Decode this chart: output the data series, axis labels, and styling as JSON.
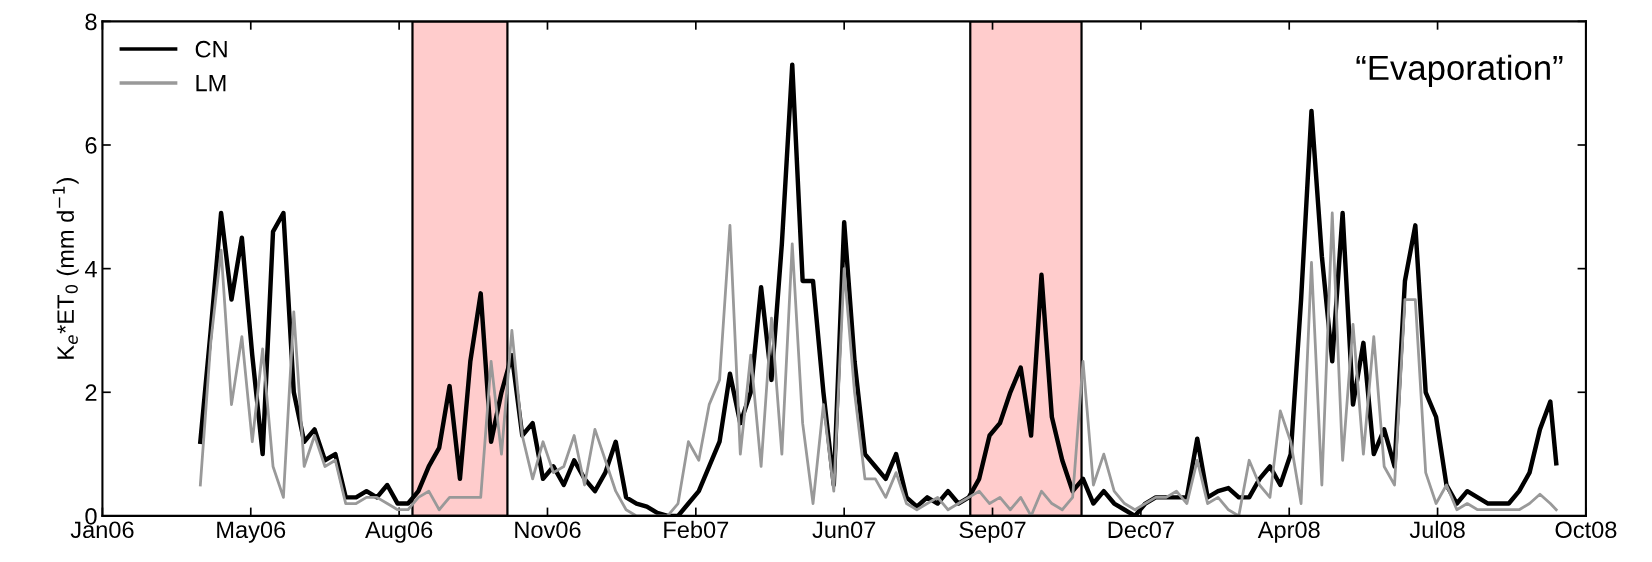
{
  "chart_data": {
    "type": "line",
    "ylabel": "K$_{e}$*ET$_{0}$ (mm d$^{−1}$)",
    "annotations": [
      "“Evaporation”"
    ],
    "x": [
      "2006-03-30",
      "2006-04-06",
      "2006-04-13",
      "2006-04-20",
      "2006-04-27",
      "2006-05-04",
      "2006-05-11",
      "2006-05-18",
      "2006-05-25",
      "2006-06-01",
      "2006-06-08",
      "2006-06-15",
      "2006-06-22",
      "2006-06-29",
      "2006-07-06",
      "2006-07-13",
      "2006-07-20",
      "2006-07-27",
      "2006-08-03",
      "2006-08-10",
      "2006-08-17",
      "2006-08-24",
      "2006-08-31",
      "2006-09-07",
      "2006-09-14",
      "2006-09-21",
      "2006-09-28",
      "2006-10-05",
      "2006-10-12",
      "2006-10-19",
      "2006-10-26",
      "2006-11-02",
      "2006-11-09",
      "2006-11-16",
      "2006-11-23",
      "2006-11-30",
      "2006-12-07",
      "2006-12-14",
      "2006-12-21",
      "2006-12-28",
      "2007-01-04",
      "2007-01-11",
      "2007-01-18",
      "2007-01-25",
      "2007-02-01",
      "2007-02-08",
      "2007-02-15",
      "2007-02-22",
      "2007-03-01",
      "2007-03-08",
      "2007-03-15",
      "2007-03-22",
      "2007-03-29",
      "2007-04-05",
      "2007-04-12",
      "2007-04-19",
      "2007-04-26",
      "2007-05-03",
      "2007-05-10",
      "2007-05-17",
      "2007-05-24",
      "2007-05-31",
      "2007-06-07",
      "2007-06-14",
      "2007-06-21",
      "2007-06-28",
      "2007-07-05",
      "2007-07-12",
      "2007-07-19",
      "2007-07-26",
      "2007-08-02",
      "2007-08-09",
      "2007-08-16",
      "2007-08-23",
      "2007-08-30",
      "2007-09-06",
      "2007-09-13",
      "2007-09-20",
      "2007-09-27",
      "2007-10-04",
      "2007-10-11",
      "2007-10-18",
      "2007-10-25",
      "2007-11-01",
      "2007-11-08",
      "2007-11-15",
      "2007-11-22",
      "2007-11-29",
      "2007-12-06",
      "2007-12-13",
      "2007-12-20",
      "2007-12-27",
      "2008-01-03",
      "2008-01-10",
      "2008-01-17",
      "2008-01-24",
      "2008-01-31",
      "2008-02-07",
      "2008-02-14",
      "2008-02-21",
      "2008-02-28",
      "2008-03-06",
      "2008-03-13",
      "2008-03-20",
      "2008-03-27",
      "2008-04-03",
      "2008-04-10",
      "2008-04-17",
      "2008-04-24",
      "2008-05-01",
      "2008-05-08",
      "2008-05-15",
      "2008-05-22",
      "2008-05-29",
      "2008-06-05",
      "2008-06-12",
      "2008-06-19",
      "2008-06-26",
      "2008-07-03",
      "2008-07-10",
      "2008-07-17",
      "2008-07-24",
      "2008-07-31",
      "2008-08-07",
      "2008-08-14",
      "2008-08-21",
      "2008-08-28",
      "2008-09-04",
      "2008-09-11",
      "2008-09-18",
      "2008-09-25",
      "2008-09-29"
    ],
    "series": [
      {
        "name": "CN",
        "color": "#000000",
        "values": [
          1.2,
          3.0,
          4.9,
          3.5,
          4.5,
          2.6,
          1.0,
          4.6,
          4.9,
          2.0,
          1.2,
          1.4,
          0.9,
          1.0,
          0.3,
          0.3,
          0.4,
          0.3,
          0.5,
          0.2,
          0.2,
          0.4,
          0.8,
          1.1,
          2.1,
          0.6,
          2.5,
          3.6,
          1.2,
          2.0,
          2.6,
          1.3,
          1.5,
          0.6,
          0.8,
          0.5,
          0.9,
          0.6,
          0.4,
          0.7,
          1.2,
          0.3,
          0.2,
          0.15,
          0.05,
          0.0,
          0.0,
          0.2,
          0.4,
          0.8,
          1.2,
          2.3,
          1.5,
          2.0,
          3.7,
          2.2,
          4.4,
          7.3,
          3.8,
          3.8,
          2.0,
          0.5,
          4.75,
          2.5,
          1.0,
          0.8,
          0.6,
          1.0,
          0.3,
          0.15,
          0.3,
          0.2,
          0.4,
          0.2,
          0.3,
          0.6,
          1.3,
          1.5,
          2.0,
          2.4,
          1.3,
          3.9,
          1.6,
          0.9,
          0.4,
          0.6,
          0.2,
          0.4,
          0.2,
          0.1,
          0.0,
          0.2,
          0.3,
          0.3,
          0.3,
          0.3,
          1.25,
          0.3,
          0.4,
          0.45,
          0.3,
          0.3,
          0.6,
          0.8,
          0.5,
          1.0,
          3.5,
          6.55,
          4.2,
          2.5,
          4.9,
          1.8,
          2.8,
          1.0,
          1.4,
          0.8,
          3.8,
          4.7,
          2.0,
          1.6,
          0.5,
          0.2,
          0.4,
          0.3,
          0.2,
          0.2,
          0.2,
          0.4,
          0.7,
          1.4,
          1.85,
          0.85
        ]
      },
      {
        "name": "LM",
        "color": "#999999",
        "values": [
          0.5,
          2.8,
          4.3,
          1.8,
          2.9,
          1.2,
          2.7,
          0.8,
          0.3,
          3.3,
          0.8,
          1.3,
          0.8,
          0.9,
          0.2,
          0.2,
          0.3,
          0.3,
          0.2,
          0.1,
          0.1,
          0.3,
          0.4,
          0.1,
          0.3,
          0.3,
          0.3,
          0.3,
          2.5,
          1.0,
          3.0,
          1.3,
          0.6,
          1.2,
          0.7,
          0.8,
          1.3,
          0.5,
          1.4,
          0.9,
          0.4,
          0.1,
          0.0,
          0.0,
          0.0,
          0.0,
          0.2,
          1.2,
          0.9,
          1.8,
          2.2,
          4.7,
          1.0,
          2.6,
          0.8,
          3.2,
          1.0,
          4.4,
          1.5,
          0.2,
          1.8,
          0.4,
          4.0,
          2.0,
          0.6,
          0.6,
          0.3,
          0.7,
          0.2,
          0.1,
          0.2,
          0.3,
          0.1,
          0.2,
          0.3,
          0.4,
          0.2,
          0.3,
          0.1,
          0.3,
          0.0,
          0.4,
          0.2,
          0.1,
          0.3,
          2.5,
          0.5,
          1.0,
          0.4,
          0.2,
          0.1,
          0.2,
          0.3,
          0.3,
          0.4,
          0.2,
          0.9,
          0.2,
          0.3,
          0.1,
          0.0,
          0.9,
          0.5,
          0.3,
          1.7,
          1.2,
          0.2,
          4.1,
          0.5,
          4.9,
          0.9,
          3.1,
          1.0,
          2.9,
          0.8,
          0.5,
          3.5,
          3.5,
          0.7,
          0.2,
          0.5,
          0.1,
          0.2,
          0.1,
          0.1,
          0.1,
          0.1,
          0.1,
          0.2,
          0.35,
          0.2,
          0.1
        ]
      }
    ],
    "bands": [
      {
        "axis": "x",
        "from": "2006-08-20",
        "to": "2006-10-23",
        "color": "#ffcccc"
      },
      {
        "axis": "x",
        "from": "2007-08-31",
        "to": "2007-11-14",
        "color": "#ffcccc"
      }
    ],
    "xlim": [
      "2006-01-23",
      "2008-10-19"
    ],
    "xticks": [
      {
        "value": "2006-01-23",
        "label": "Jan06"
      },
      {
        "value": "2006-05-03",
        "label": "May06"
      },
      {
        "value": "2006-08-11",
        "label": "Aug06"
      },
      {
        "value": "2006-11-19",
        "label": "Nov06"
      },
      {
        "value": "2007-02-27",
        "label": "Feb07"
      },
      {
        "value": "2007-06-07",
        "label": "Jun07"
      },
      {
        "value": "2007-09-15",
        "label": "Sep07"
      },
      {
        "value": "2007-12-24",
        "label": "Dec07"
      },
      {
        "value": "2008-04-02",
        "label": "Apr08"
      },
      {
        "value": "2008-07-11",
        "label": "Jul08"
      },
      {
        "value": "2008-10-19",
        "label": "Oct08"
      }
    ],
    "ylim": [
      0,
      8
    ],
    "yticks": [
      0,
      2,
      4,
      6,
      8
    ],
    "legend": "top left",
    "grid": false,
    "line_style": "solid",
    "marker": "none"
  }
}
